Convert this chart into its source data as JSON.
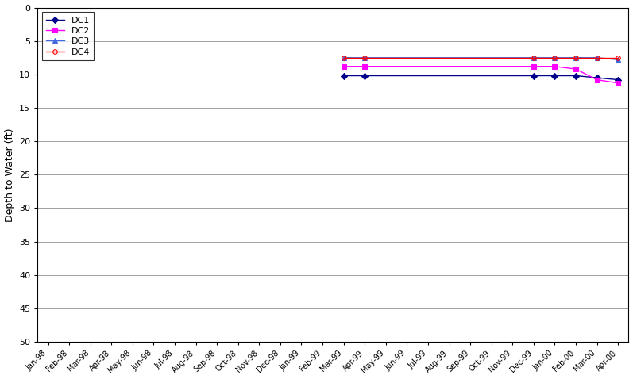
{
  "ylabel": "Depth to Water (ft)",
  "ylim": [
    50,
    0
  ],
  "yticks": [
    0,
    5,
    10,
    15,
    20,
    25,
    30,
    35,
    40,
    45,
    50
  ],
  "x_labels": [
    "Jan-98",
    "Feb-98",
    "Mar-98",
    "Apr-98",
    "May-98",
    "Jun-98",
    "Jul-98",
    "Aug-98",
    "Sep-98",
    "Oct-98",
    "Nov-98",
    "Dec-98",
    "Jan-99",
    "Feb-99",
    "Mar-99",
    "Apr-99",
    "May-99",
    "Jun-99",
    "Jul-99",
    "Aug-99",
    "Sep-99",
    "Oct-99",
    "Nov-99",
    "Dec-99",
    "Jan-00",
    "Feb-00",
    "Mar-00",
    "Apr-00"
  ],
  "series": [
    {
      "name": "DC1",
      "color": "#00008B",
      "marker": "D",
      "markersize": 4,
      "linewidth": 1.0,
      "markerfacecolor": "#00008B",
      "markeredgecolor": "#00008B",
      "x_indices": [
        14,
        15,
        23,
        24,
        25,
        26,
        27
      ],
      "y_values": [
        10.2,
        10.2,
        10.2,
        10.2,
        10.2,
        10.5,
        10.8
      ]
    },
    {
      "name": "DC2",
      "color": "#FF00FF",
      "marker": "s",
      "markersize": 4,
      "linewidth": 1.0,
      "markerfacecolor": "#FF00FF",
      "markeredgecolor": "#FF00FF",
      "x_indices": [
        14,
        15,
        23,
        24,
        25,
        26,
        27
      ],
      "y_values": [
        8.8,
        8.8,
        8.8,
        8.8,
        9.2,
        10.8,
        11.3
      ]
    },
    {
      "name": "DC3",
      "color": "#4169E1",
      "marker": "^",
      "markersize": 4,
      "linewidth": 1.0,
      "markerfacecolor": "#4169E1",
      "markeredgecolor": "#4169E1",
      "x_indices": [
        14,
        15,
        23,
        24,
        25,
        26,
        27
      ],
      "y_values": [
        7.5,
        7.5,
        7.5,
        7.5,
        7.5,
        7.5,
        7.8
      ]
    },
    {
      "name": "DC4",
      "color": "#FF0000",
      "marker": "o",
      "markersize": 4,
      "linewidth": 1.0,
      "markerfacecolor": "none",
      "markeredgecolor": "#FF0000",
      "x_indices": [
        14,
        15,
        23,
        24,
        25,
        26,
        27
      ],
      "y_values": [
        7.5,
        7.5,
        7.5,
        7.5,
        7.5,
        7.5,
        7.5
      ]
    }
  ],
  "background_color": "#FFFFFF",
  "grid_color": "#A0A0A0"
}
